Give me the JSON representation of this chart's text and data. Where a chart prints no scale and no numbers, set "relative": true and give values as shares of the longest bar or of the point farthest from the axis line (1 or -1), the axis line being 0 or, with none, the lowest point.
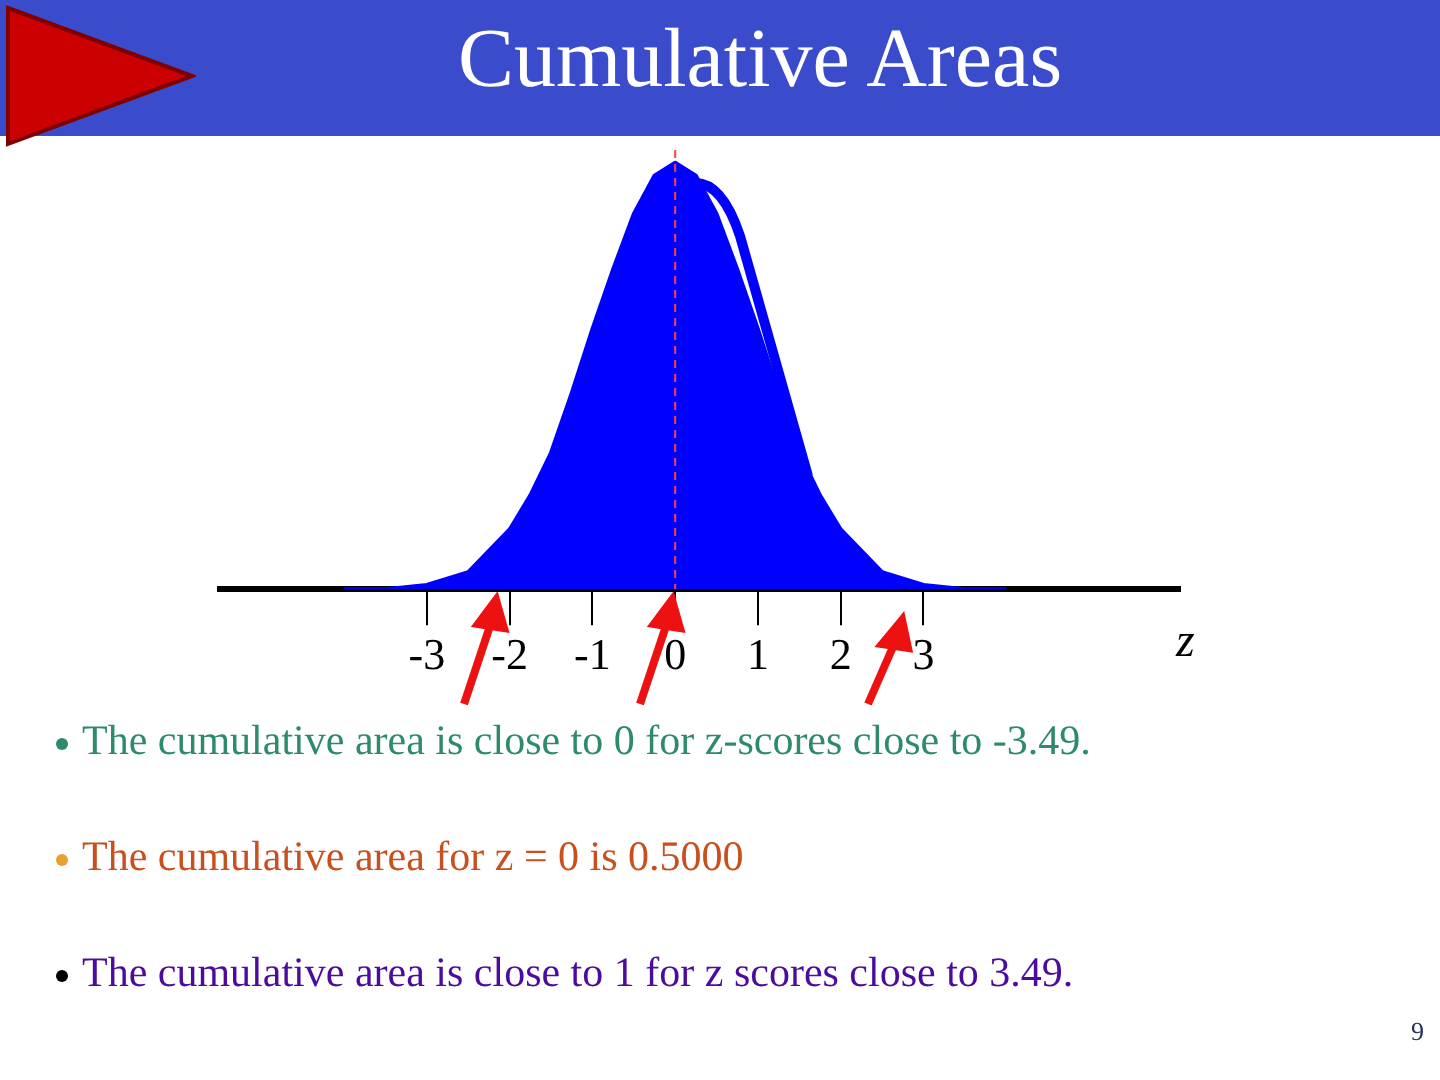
{
  "chart_data": {
    "type": "area",
    "title": "Cumulative Areas",
    "xlabel": "z",
    "relative": true,
    "x": [
      -4,
      -3.5,
      -3,
      -2.5,
      -2,
      -1.75,
      -1.5,
      -1.25,
      -1,
      -0.75,
      -0.5,
      -0.25,
      0,
      0.25,
      0.5,
      0.75,
      1,
      1.25,
      1.5,
      1.75,
      2,
      2.5,
      3,
      3.5,
      4
    ],
    "series": [
      {
        "color": "#0000ff",
        "values": [
          0,
          0,
          0.01,
          0.04,
          0.14,
          0.22,
          0.32,
          0.46,
          0.61,
          0.75,
          0.88,
          0.97,
          1,
          0.97,
          0.88,
          0.75,
          0.61,
          0.46,
          0.32,
          0.22,
          0.14,
          0.04,
          0.01,
          0,
          0
        ]
      }
    ],
    "xlim": [
      -5.5,
      6.1
    ],
    "xticks": [
      -3,
      -2,
      -1,
      0,
      1,
      2,
      3
    ],
    "ref_lines": [
      {
        "axis": "x",
        "value": 0,
        "color": "#ff4040",
        "line_style": "dashed"
      }
    ],
    "grid": false,
    "legend": false,
    "annotations": [
      "The cumulative area is close to 0 for z-scores close to -3.49.",
      "The cumulative area for z = 0 is 0.5000",
      "The cumulative area is close to 1 for z scores close to 3.49.",
      "9"
    ]
  }
}
